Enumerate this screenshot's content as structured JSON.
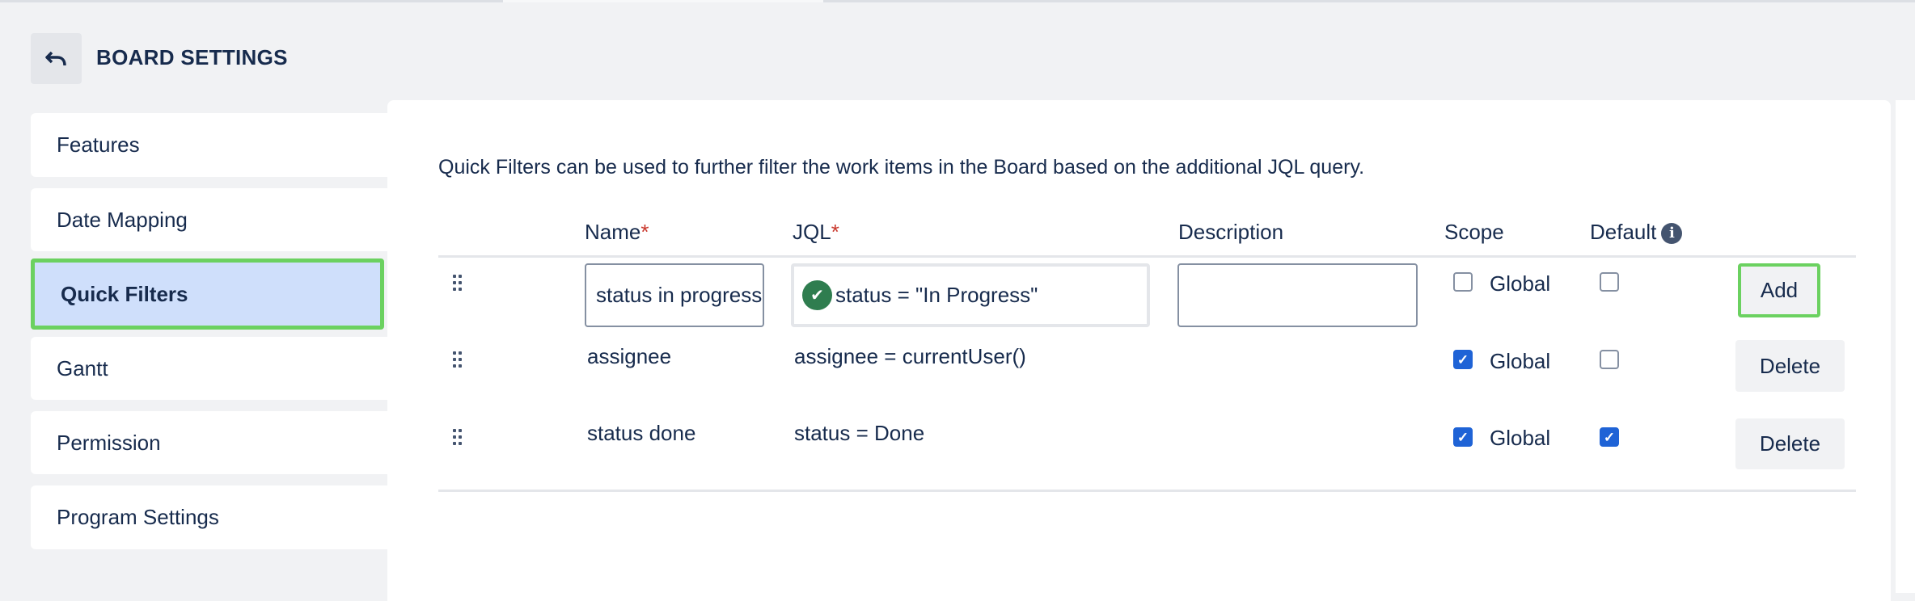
{
  "header": {
    "title": "BOARD SETTINGS",
    "back_icon": "undo-arrow-icon"
  },
  "sidebar": {
    "items": [
      {
        "label": "Features",
        "active": false
      },
      {
        "label": "Date Mapping",
        "active": false
      },
      {
        "label": "Quick Filters",
        "active": true
      },
      {
        "label": "Gantt",
        "active": false
      },
      {
        "label": "Permission",
        "active": false
      },
      {
        "label": "Program Settings",
        "active": false
      }
    ]
  },
  "main": {
    "description": "Quick Filters can be used to further filter the work items in the Board based on the additional JQL query.",
    "columns": {
      "name": "Name",
      "jql": "JQL",
      "description": "Description",
      "scope": "Scope",
      "default": "Default",
      "required_mark": "*"
    },
    "new_row": {
      "name": "status in progress",
      "jql": "status = \"In Progress\"",
      "description": "",
      "scope_label": "Global",
      "scope_global": false,
      "default": false,
      "add_label": "Add"
    },
    "rows": [
      {
        "name": "assignee",
        "jql": "assignee = currentUser()",
        "description": "",
        "scope_label": "Global",
        "scope_global": true,
        "default": false,
        "delete_label": "Delete"
      },
      {
        "name": "status done",
        "jql": "status = Done",
        "description": "",
        "scope_label": "Global",
        "scope_global": true,
        "default": true,
        "delete_label": "Delete"
      }
    ]
  },
  "colors": {
    "accent": "#1f63d6",
    "highlight": "#6bd160",
    "active_nav": "#cfdffb",
    "valid": "#2f7d4f",
    "required": "#c9372c"
  }
}
